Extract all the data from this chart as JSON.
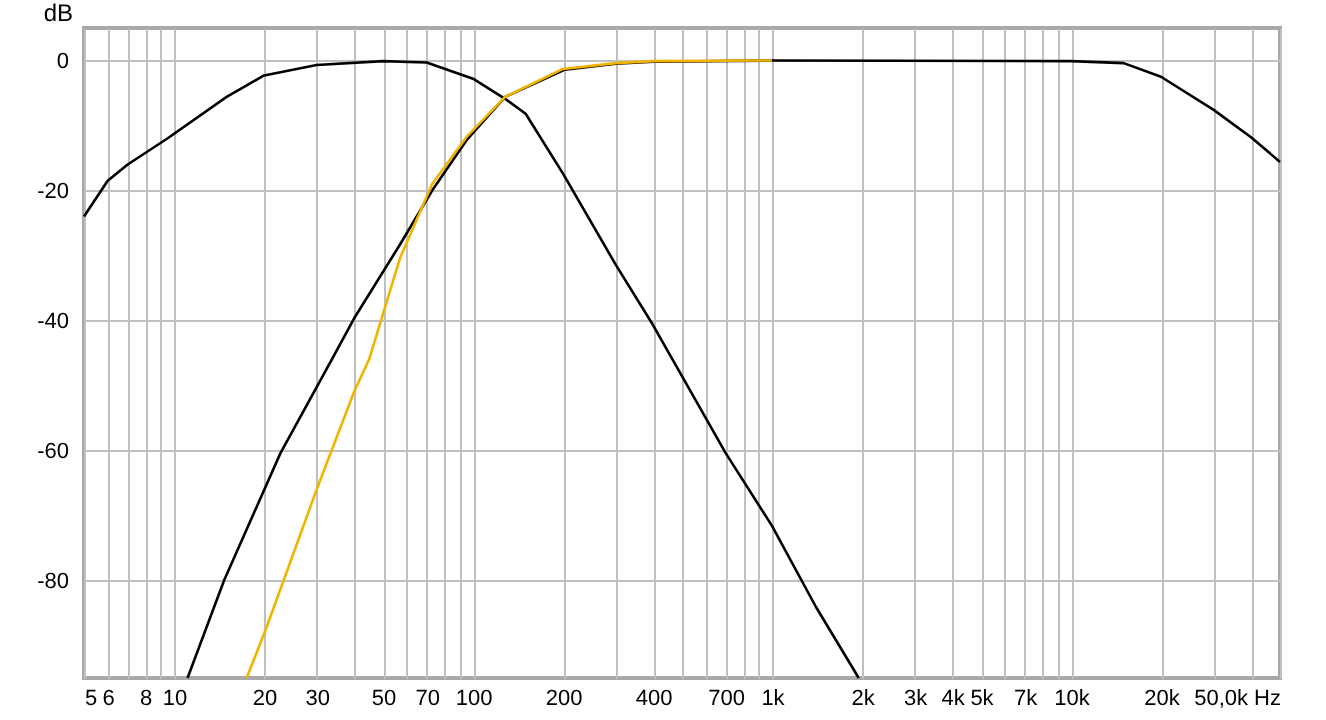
{
  "chart_data": {
    "type": "line",
    "ylabel": "dB",
    "grid": true,
    "log": "x",
    "line_style": "solid",
    "marker": "none",
    "xlim": [
      5,
      50000
    ],
    "ylim": [
      -95,
      5
    ],
    "xticks": [
      5,
      6,
      {
        "value": 7,
        "label": null
      },
      8,
      {
        "value": 9,
        "label": null
      },
      10,
      20,
      30,
      {
        "value": 40,
        "label": null
      },
      50,
      {
        "value": 60,
        "label": null
      },
      70,
      {
        "value": 80,
        "label": null
      },
      {
        "value": 90,
        "label": null
      },
      100,
      200,
      {
        "value": 300,
        "label": null
      },
      400,
      {
        "value": 500,
        "label": null
      },
      {
        "value": 600,
        "label": null
      },
      700,
      {
        "value": 800,
        "label": null
      },
      {
        "value": 900,
        "label": null
      },
      {
        "value": 1000,
        "label": "1k"
      },
      {
        "value": 2000,
        "label": "2k"
      },
      {
        "value": 3000,
        "label": "3k"
      },
      {
        "value": 4000,
        "label": "4k"
      },
      {
        "value": 5000,
        "label": "5k"
      },
      {
        "value": 6000,
        "label": null
      },
      {
        "value": 7000,
        "label": "7k"
      },
      {
        "value": 8000,
        "label": null
      },
      {
        "value": 9000,
        "label": null
      },
      {
        "value": 10000,
        "label": "10k"
      },
      {
        "value": 20000,
        "label": "20k"
      },
      {
        "value": 30000,
        "label": null
      },
      {
        "value": 40000,
        "label": null
      },
      {
        "value": 50000,
        "label": "50,0k Hz"
      }
    ],
    "yticks": [
      0,
      -20,
      -40,
      -60,
      -80
    ],
    "series": [
      {
        "color": "#000000",
        "x": [
          5,
          6,
          7,
          9.5,
          15,
          20,
          30,
          50,
          70,
          100,
          130,
          150,
          200,
          300,
          400,
          700,
          1000,
          1400,
          1950
        ],
        "values": [
          -24,
          -18.5,
          -16,
          -12,
          -5.6,
          -2.3,
          -0.7,
          -0.1,
          -0.3,
          -2.8,
          -6.1,
          -8.2,
          -17.4,
          -31.4,
          -40.7,
          -60.4,
          -71.6,
          -84,
          -95
        ]
      },
      {
        "color": "#000000",
        "x": [
          11.1,
          14.7,
          22.7,
          33.8,
          40,
          57,
          73,
          95,
          128,
          203,
          300,
          400,
          1000,
          10000,
          15000,
          20000,
          30000,
          40000,
          50000
        ],
        "values": [
          -95,
          -80,
          -60.4,
          -45.9,
          -39.7,
          -28.3,
          -20,
          -12.3,
          -5.6,
          -1.4,
          -0.5,
          -0.2,
          0,
          -0.1,
          -0.4,
          -2.5,
          -7.6,
          -11.8,
          -15.6
        ]
      },
      {
        "color": "#f0b400",
        "x": [
          17.5,
          20.4,
          30,
          40,
          45,
          57,
          73,
          95,
          128,
          200,
          300,
          400,
          1000
        ],
        "values": [
          -95,
          -87.2,
          -66,
          -51,
          -45.9,
          -30.4,
          -19,
          -11.8,
          -5.6,
          -1.3,
          -0.4,
          -0.1,
          0
        ]
      }
    ]
  }
}
